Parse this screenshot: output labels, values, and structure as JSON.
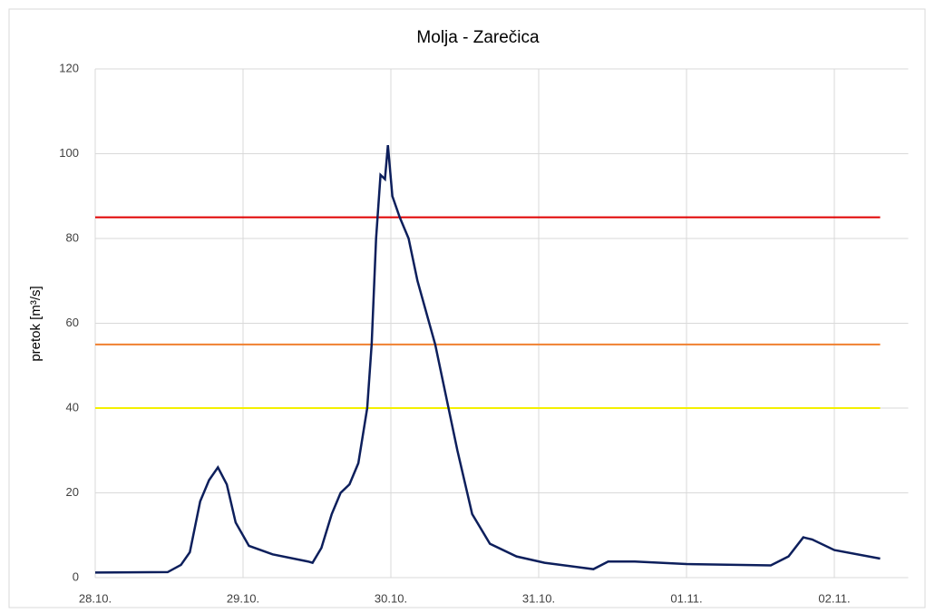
{
  "chart_data": {
    "type": "line",
    "title": "Molja - Zarečica",
    "ylabel": "pretok [m³/s]",
    "xlim": [
      0,
      5.5
    ],
    "ylim": [
      0,
      120
    ],
    "xticks": [
      {
        "value": 0,
        "label": "28.10."
      },
      {
        "value": 1,
        "label": "29.10."
      },
      {
        "value": 2,
        "label": "30.10."
      },
      {
        "value": 3,
        "label": "31.10."
      },
      {
        "value": 4,
        "label": "01.11."
      },
      {
        "value": 5,
        "label": "02.11."
      }
    ],
    "yticks": [
      0,
      20,
      40,
      60,
      80,
      100,
      120
    ],
    "grid": true,
    "series": [
      {
        "color": "#0d1f5c",
        "x": [
          0,
          0.49,
          0.58,
          0.64,
          0.71,
          0.77,
          0.83,
          0.89,
          0.95,
          1.04,
          1.2,
          1.44,
          1.47,
          1.53,
          1.6,
          1.66,
          1.72,
          1.78,
          1.84,
          1.87,
          1.9,
          1.93,
          1.96,
          1.98,
          2.01,
          2.06,
          2.12,
          2.18,
          2.3,
          2.39,
          2.45,
          2.55,
          2.67,
          2.85,
          3.04,
          3.37,
          3.47,
          3.65,
          4.0,
          4.57,
          4.69,
          4.79,
          4.85,
          5.0,
          5.31
        ],
        "values": [
          1.2,
          1.3,
          3,
          6,
          18,
          23,
          26,
          22,
          13,
          7.5,
          5.5,
          3.8,
          3.5,
          7,
          15,
          20,
          22,
          27,
          40,
          55,
          80,
          95,
          94,
          102,
          90,
          85,
          80,
          70,
          55,
          40,
          30,
          15,
          8,
          5,
          3.5,
          2,
          3.8,
          3.8,
          3.2,
          2.9,
          5,
          9.5,
          9,
          6.5,
          4.5
        ]
      },
      {
        "color": "#e00000",
        "x": [
          0,
          5.31
        ],
        "values": [
          85,
          85
        ]
      },
      {
        "color": "#f08030",
        "x": [
          0,
          5.31
        ],
        "values": [
          55,
          55
        ]
      },
      {
        "color": "#f4f000",
        "x": [
          0,
          5.31
        ],
        "values": [
          40,
          40
        ]
      }
    ]
  }
}
